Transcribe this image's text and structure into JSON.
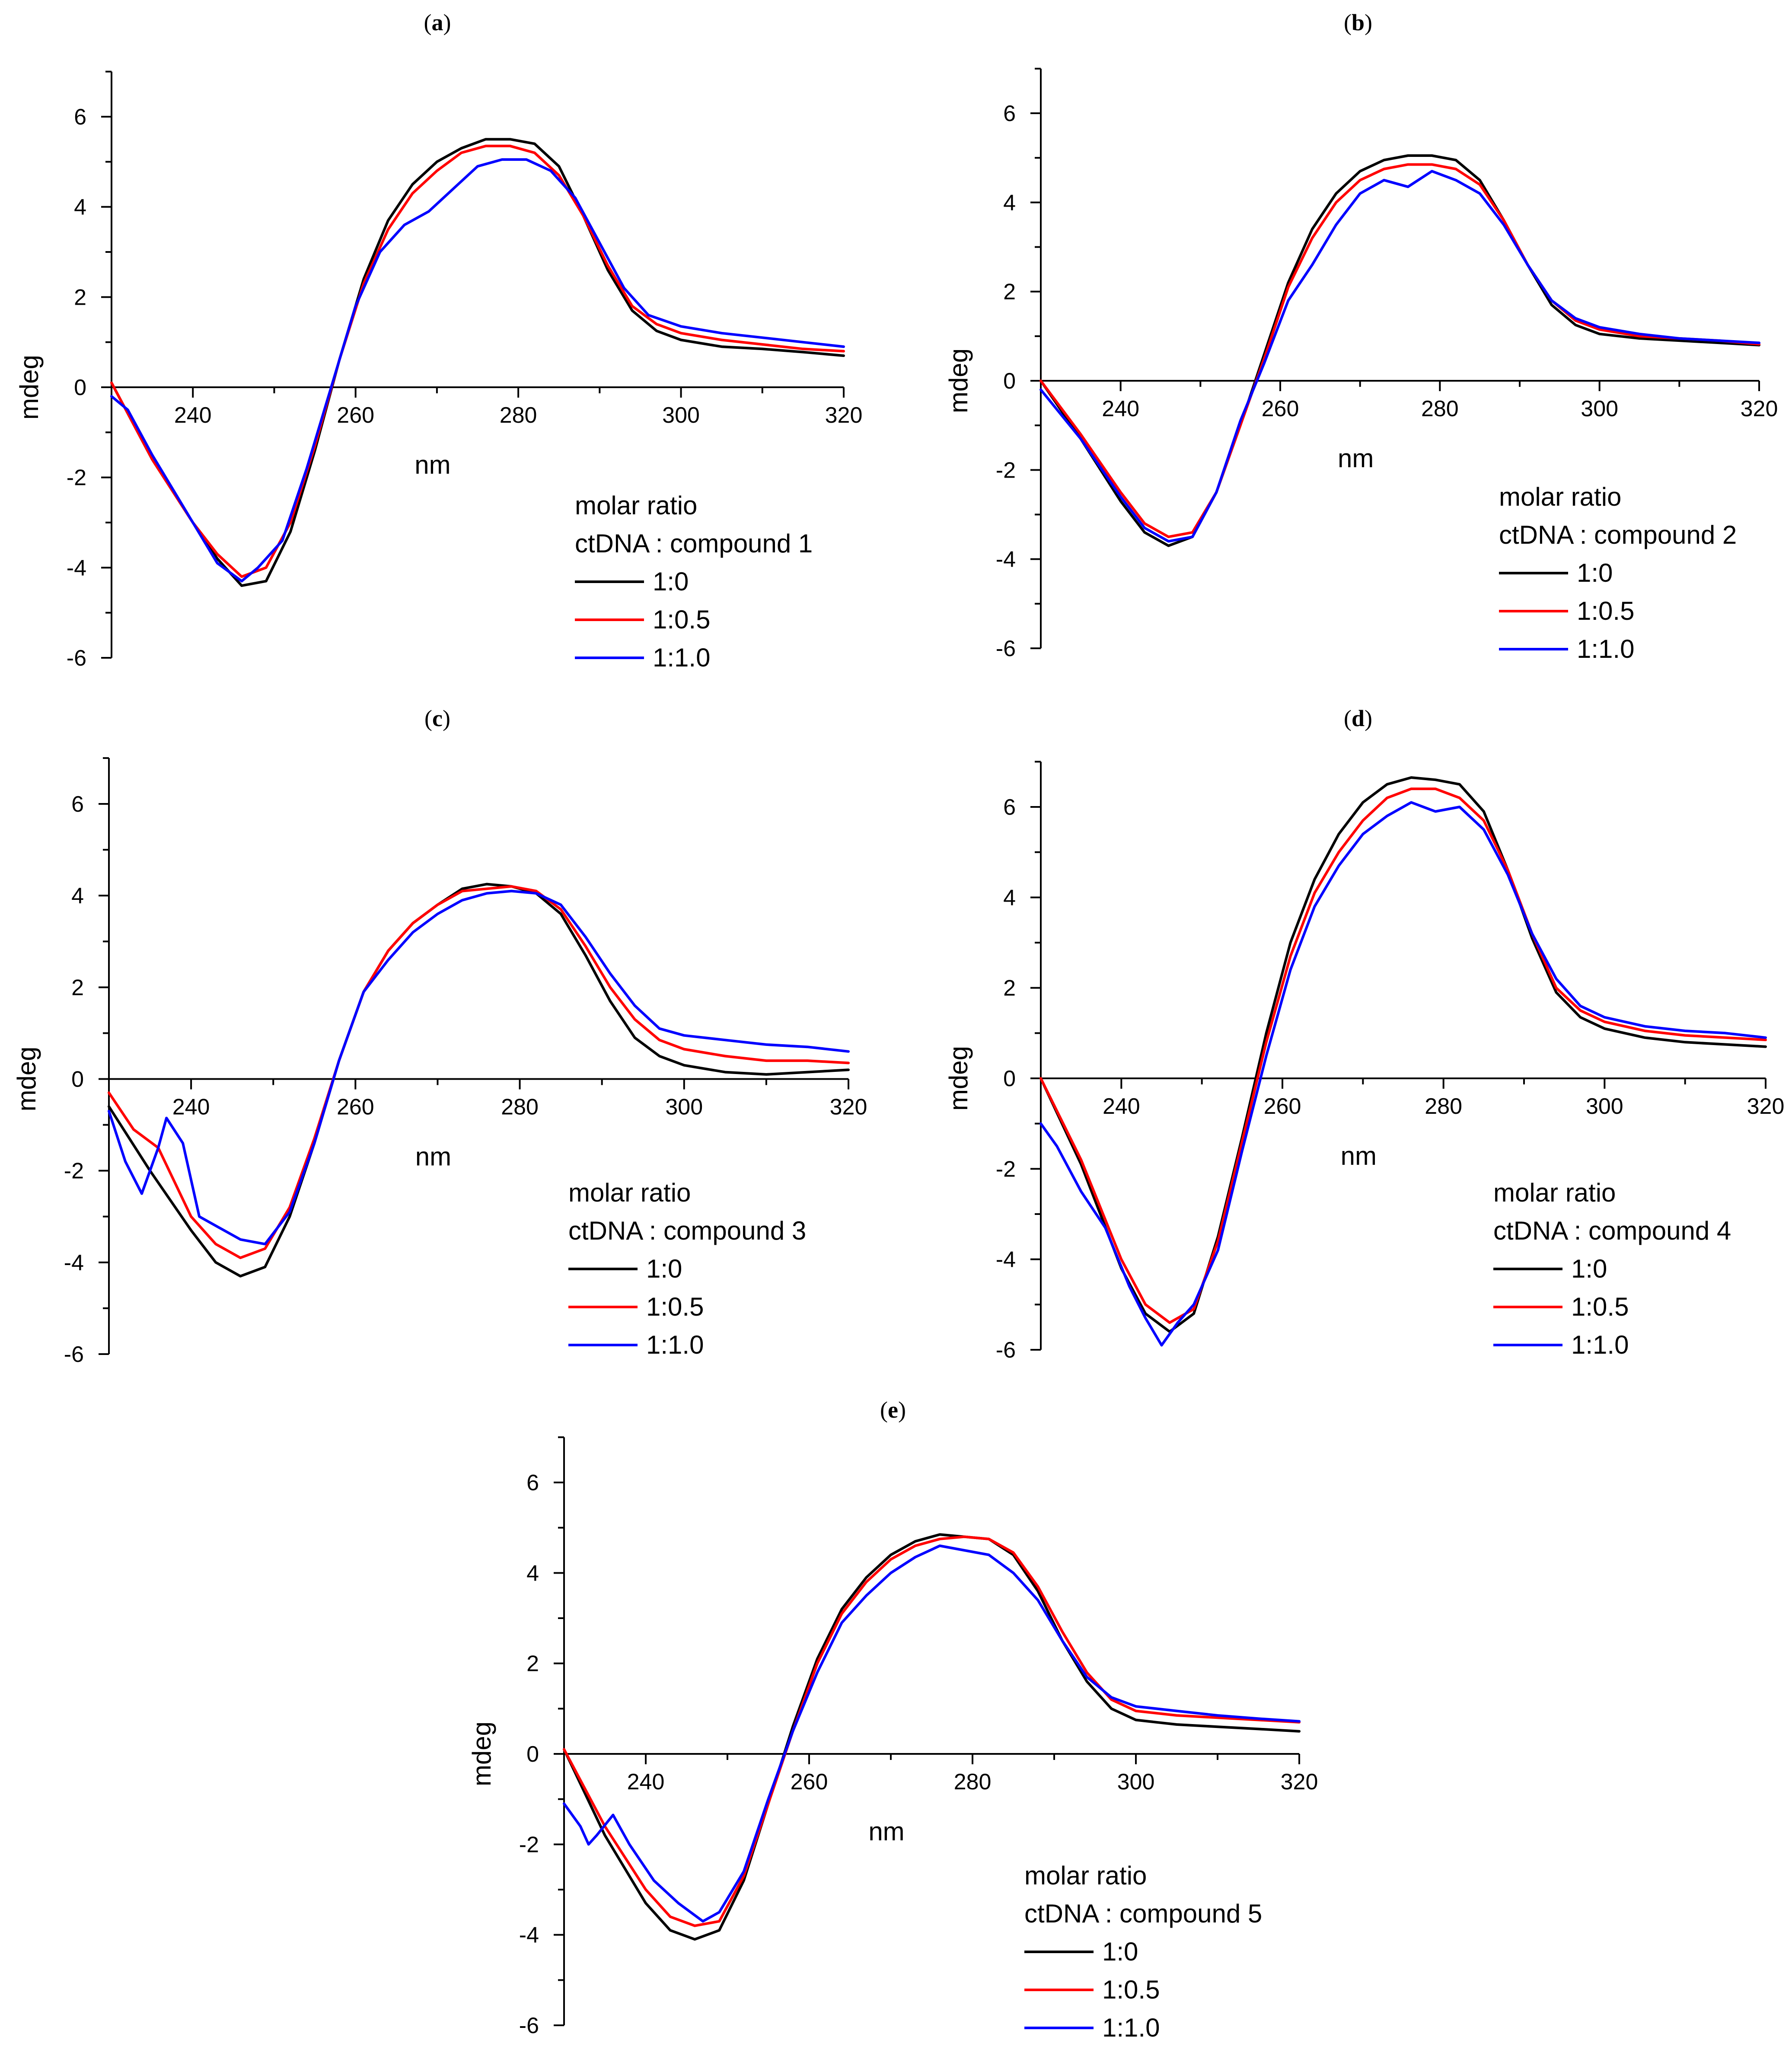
{
  "figure": {
    "panels": [
      "(a)",
      "(b)",
      "(c)",
      "(d)",
      "(e)"
    ]
  },
  "colors": {
    "ratio_0": "#000000",
    "ratio_05": "#ff0000",
    "ratio_10": "#0000ff"
  },
  "chart_data": [
    {
      "id": "a",
      "label": "a",
      "type": "line",
      "xlabel": "nm",
      "ylabel": "mdeg",
      "xlim": [
        230,
        320
      ],
      "ylim": [
        -6,
        7
      ],
      "xticks": [
        240,
        260,
        280,
        300,
        320
      ],
      "yticks": [
        -6,
        -4,
        -2,
        0,
        2,
        4,
        6
      ],
      "legend": {
        "title1": "molar ratio",
        "title2": "ctDNA : compound 1"
      },
      "series": [
        {
          "name": "1:0",
          "color": "#000000",
          "x": [
            230,
            235,
            240,
            243,
            246,
            249,
            252,
            255,
            258,
            261,
            264,
            267,
            270,
            273,
            276,
            279,
            282,
            285,
            288,
            291,
            294,
            297,
            300,
            305,
            310,
            315,
            320
          ],
          "y": [
            0.1,
            -1.6,
            -3.0,
            -3.8,
            -4.4,
            -4.3,
            -3.2,
            -1.4,
            0.6,
            2.4,
            3.7,
            4.5,
            5.0,
            5.3,
            5.5,
            5.5,
            5.4,
            4.9,
            3.8,
            2.6,
            1.7,
            1.25,
            1.05,
            0.9,
            0.85,
            0.78,
            0.7
          ]
        },
        {
          "name": "1:0.5",
          "color": "#ff0000",
          "x": [
            230,
            235,
            240,
            243,
            246,
            249,
            252,
            255,
            258,
            261,
            264,
            267,
            270,
            273,
            276,
            279,
            282,
            285,
            288,
            291,
            294,
            297,
            300,
            305,
            310,
            315,
            320
          ],
          "y": [
            0.1,
            -1.6,
            -3.0,
            -3.7,
            -4.2,
            -4.0,
            -3.0,
            -1.3,
            0.6,
            2.3,
            3.5,
            4.3,
            4.8,
            5.2,
            5.35,
            5.35,
            5.2,
            4.7,
            3.8,
            2.7,
            1.8,
            1.4,
            1.2,
            1.05,
            0.95,
            0.85,
            0.8
          ]
        },
        {
          "name": "1:1.0",
          "color": "#0000ff",
          "x": [
            230,
            232,
            235,
            240,
            243,
            246,
            248,
            251,
            254,
            257,
            260,
            263,
            266,
            269,
            272,
            275,
            278,
            281,
            284,
            287,
            290,
            293,
            296,
            300,
            305,
            310,
            315,
            320
          ],
          "y": [
            -0.2,
            -0.5,
            -1.5,
            -3.0,
            -3.9,
            -4.3,
            -4.0,
            -3.4,
            -1.8,
            0.0,
            1.8,
            3.0,
            3.6,
            3.9,
            4.4,
            4.9,
            5.05,
            5.05,
            4.8,
            4.2,
            3.2,
            2.2,
            1.6,
            1.35,
            1.2,
            1.1,
            1.0,
            0.9
          ]
        }
      ]
    },
    {
      "id": "b",
      "label": "b",
      "type": "line",
      "xlabel": "nm",
      "ylabel": "mdeg",
      "xlim": [
        230,
        320
      ],
      "ylim": [
        -6,
        7
      ],
      "xticks": [
        240,
        260,
        280,
        300,
        320
      ],
      "yticks": [
        -6,
        -4,
        -2,
        0,
        2,
        4,
        6
      ],
      "legend": {
        "title1": "molar ratio",
        "title2": "ctDNA : compound 2"
      },
      "series": [
        {
          "name": "1:0",
          "color": "#000000",
          "x": [
            230,
            235,
            240,
            243,
            246,
            249,
            252,
            255,
            258,
            261,
            264,
            267,
            270,
            273,
            276,
            279,
            282,
            285,
            288,
            291,
            294,
            297,
            300,
            305,
            310,
            315,
            320
          ],
          "y": [
            0.0,
            -1.3,
            -2.7,
            -3.4,
            -3.7,
            -3.5,
            -2.5,
            -1.0,
            0.6,
            2.2,
            3.4,
            4.2,
            4.7,
            4.95,
            5.05,
            5.05,
            4.95,
            4.5,
            3.6,
            2.6,
            1.7,
            1.25,
            1.05,
            0.95,
            0.9,
            0.85,
            0.8
          ]
        },
        {
          "name": "1:0.5",
          "color": "#ff0000",
          "x": [
            230,
            235,
            240,
            243,
            246,
            249,
            252,
            255,
            258,
            261,
            264,
            267,
            270,
            273,
            276,
            279,
            282,
            285,
            288,
            291,
            294,
            297,
            300,
            305,
            310,
            315,
            320
          ],
          "y": [
            0.0,
            -1.2,
            -2.5,
            -3.2,
            -3.5,
            -3.4,
            -2.5,
            -1.0,
            0.5,
            2.1,
            3.2,
            4.0,
            4.5,
            4.75,
            4.85,
            4.85,
            4.75,
            4.4,
            3.6,
            2.6,
            1.8,
            1.35,
            1.15,
            1.0,
            0.95,
            0.9,
            0.82
          ]
        },
        {
          "name": "1:1.0",
          "color": "#0000ff",
          "x": [
            230,
            235,
            240,
            243,
            246,
            249,
            252,
            255,
            258,
            261,
            264,
            267,
            270,
            273,
            276,
            279,
            282,
            285,
            288,
            291,
            294,
            297,
            300,
            305,
            310,
            315,
            320
          ],
          "y": [
            -0.2,
            -1.3,
            -2.6,
            -3.3,
            -3.6,
            -3.5,
            -2.5,
            -0.9,
            0.4,
            1.8,
            2.6,
            3.5,
            4.2,
            4.5,
            4.35,
            4.7,
            4.5,
            4.2,
            3.5,
            2.6,
            1.8,
            1.4,
            1.2,
            1.05,
            0.95,
            0.9,
            0.85
          ]
        }
      ]
    },
    {
      "id": "c",
      "label": "c",
      "type": "line",
      "xlabel": "nm",
      "ylabel": "mdeg",
      "xlim": [
        230,
        320
      ],
      "ylim": [
        -6,
        7
      ],
      "xticks": [
        240,
        260,
        280,
        300,
        320
      ],
      "yticks": [
        -6,
        -4,
        -2,
        0,
        2,
        4,
        6
      ],
      "legend": {
        "title1": "molar ratio",
        "title2": "ctDNA : compound 3"
      },
      "series": [
        {
          "name": "1:0",
          "color": "#000000",
          "x": [
            230,
            235,
            240,
            243,
            246,
            249,
            252,
            255,
            258,
            261,
            264,
            267,
            270,
            273,
            276,
            279,
            282,
            285,
            288,
            291,
            294,
            297,
            300,
            305,
            310,
            315,
            320
          ],
          "y": [
            -0.6,
            -2.0,
            -3.3,
            -4.0,
            -4.3,
            -4.1,
            -3.0,
            -1.4,
            0.4,
            1.9,
            2.8,
            3.4,
            3.8,
            4.15,
            4.25,
            4.2,
            4.05,
            3.6,
            2.7,
            1.7,
            0.9,
            0.5,
            0.3,
            0.15,
            0.1,
            0.15,
            0.2
          ]
        },
        {
          "name": "1:0.5",
          "color": "#ff0000",
          "x": [
            230,
            233,
            236,
            240,
            243,
            246,
            249,
            252,
            255,
            258,
            261,
            264,
            267,
            270,
            273,
            276,
            279,
            282,
            285,
            288,
            291,
            294,
            297,
            300,
            305,
            310,
            315,
            320
          ],
          "y": [
            -0.3,
            -1.1,
            -1.5,
            -3.0,
            -3.6,
            -3.9,
            -3.7,
            -2.8,
            -1.3,
            0.4,
            1.9,
            2.8,
            3.4,
            3.8,
            4.1,
            4.15,
            4.2,
            4.1,
            3.7,
            2.9,
            2.0,
            1.3,
            0.85,
            0.65,
            0.5,
            0.4,
            0.4,
            0.35
          ]
        },
        {
          "name": "1:1.0",
          "color": "#0000ff",
          "x": [
            230,
            232,
            234,
            236,
            237,
            239,
            241,
            243,
            246,
            249,
            252,
            255,
            258,
            261,
            264,
            267,
            270,
            273,
            276,
            279,
            282,
            285,
            288,
            291,
            294,
            297,
            300,
            305,
            310,
            315,
            320
          ],
          "y": [
            -0.7,
            -1.8,
            -2.5,
            -1.5,
            -0.85,
            -1.4,
            -3.0,
            -3.2,
            -3.5,
            -3.6,
            -2.9,
            -1.4,
            0.4,
            1.9,
            2.6,
            3.2,
            3.6,
            3.9,
            4.05,
            4.1,
            4.05,
            3.8,
            3.1,
            2.3,
            1.6,
            1.1,
            0.95,
            0.85,
            0.75,
            0.7,
            0.6
          ]
        }
      ]
    },
    {
      "id": "d",
      "label": "d",
      "type": "line",
      "xlabel": "nm",
      "ylabel": "mdeg",
      "xlim": [
        230,
        320
      ],
      "ylim": [
        -6,
        7
      ],
      "xticks": [
        240,
        260,
        280,
        300,
        320
      ],
      "yticks": [
        -6,
        -4,
        -2,
        0,
        2,
        4,
        6
      ],
      "legend": {
        "title1": "molar ratio",
        "title2": "ctDNA : compound 4"
      },
      "series": [
        {
          "name": "1:0",
          "color": "#000000",
          "x": [
            230,
            235,
            240,
            243,
            246,
            249,
            252,
            255,
            258,
            261,
            264,
            267,
            270,
            273,
            276,
            279,
            282,
            285,
            288,
            291,
            294,
            297,
            300,
            305,
            310,
            315,
            320
          ],
          "y": [
            0.0,
            -1.9,
            -4.2,
            -5.2,
            -5.6,
            -5.2,
            -3.5,
            -1.3,
            1.0,
            3.0,
            4.4,
            5.4,
            6.1,
            6.5,
            6.65,
            6.6,
            6.5,
            5.9,
            4.6,
            3.1,
            1.9,
            1.35,
            1.1,
            0.9,
            0.8,
            0.75,
            0.7
          ]
        },
        {
          "name": "1:0.5",
          "color": "#ff0000",
          "x": [
            230,
            235,
            240,
            243,
            246,
            249,
            252,
            255,
            258,
            261,
            264,
            267,
            270,
            273,
            276,
            279,
            282,
            285,
            288,
            291,
            294,
            297,
            300,
            305,
            310,
            315,
            320
          ],
          "y": [
            0.0,
            -1.8,
            -4.0,
            -5.0,
            -5.4,
            -5.1,
            -3.6,
            -1.4,
            0.8,
            2.7,
            4.1,
            5.0,
            5.7,
            6.2,
            6.4,
            6.4,
            6.2,
            5.7,
            4.6,
            3.2,
            2.0,
            1.5,
            1.25,
            1.05,
            0.95,
            0.9,
            0.85
          ]
        },
        {
          "name": "1:1.0",
          "color": "#0000ff",
          "x": [
            230,
            232,
            235,
            238,
            241,
            243,
            245,
            247,
            249,
            252,
            255,
            258,
            261,
            264,
            267,
            270,
            273,
            276,
            279,
            282,
            285,
            288,
            291,
            294,
            297,
            300,
            305,
            310,
            315,
            320
          ],
          "y": [
            -1.0,
            -1.5,
            -2.5,
            -3.3,
            -4.6,
            -5.3,
            -5.9,
            -5.4,
            -5.0,
            -3.8,
            -1.6,
            0.5,
            2.4,
            3.8,
            4.7,
            5.4,
            5.8,
            6.1,
            5.9,
            6.0,
            5.5,
            4.5,
            3.2,
            2.2,
            1.6,
            1.35,
            1.15,
            1.05,
            1.0,
            0.9
          ]
        }
      ]
    },
    {
      "id": "e",
      "label": "e",
      "type": "line",
      "xlabel": "nm",
      "ylabel": "mdeg",
      "xlim": [
        230,
        320
      ],
      "ylim": [
        -6,
        7
      ],
      "xticks": [
        240,
        260,
        280,
        300,
        320
      ],
      "yticks": [
        -6,
        -4,
        -2,
        0,
        2,
        4,
        6
      ],
      "legend": {
        "title1": "molar ratio",
        "title2": "ctDNA : compound 5"
      },
      "series": [
        {
          "name": "1:0",
          "color": "#000000",
          "x": [
            230,
            235,
            240,
            243,
            246,
            249,
            252,
            255,
            258,
            261,
            264,
            267,
            270,
            273,
            276,
            279,
            282,
            285,
            288,
            291,
            294,
            297,
            300,
            305,
            310,
            315,
            320
          ],
          "y": [
            0.1,
            -1.8,
            -3.3,
            -3.9,
            -4.1,
            -3.9,
            -2.8,
            -1.1,
            0.6,
            2.1,
            3.2,
            3.9,
            4.4,
            4.7,
            4.85,
            4.8,
            4.75,
            4.4,
            3.6,
            2.5,
            1.6,
            1.0,
            0.75,
            0.65,
            0.6,
            0.55,
            0.5
          ]
        },
        {
          "name": "1:0.5",
          "color": "#ff0000",
          "x": [
            230,
            235,
            240,
            243,
            246,
            249,
            252,
            255,
            258,
            261,
            264,
            267,
            270,
            273,
            276,
            279,
            282,
            285,
            288,
            291,
            294,
            297,
            300,
            305,
            310,
            315,
            320
          ],
          "y": [
            0.1,
            -1.6,
            -3.0,
            -3.6,
            -3.8,
            -3.7,
            -2.7,
            -1.1,
            0.5,
            2.0,
            3.1,
            3.8,
            4.3,
            4.6,
            4.75,
            4.8,
            4.75,
            4.45,
            3.7,
            2.7,
            1.8,
            1.2,
            0.95,
            0.85,
            0.8,
            0.75,
            0.7
          ]
        },
        {
          "name": "1:1.0",
          "color": "#0000ff",
          "x": [
            230,
            232,
            233,
            234,
            236,
            238,
            241,
            244,
            247,
            249,
            252,
            255,
            258,
            261,
            264,
            267,
            270,
            273,
            276,
            279,
            282,
            285,
            288,
            291,
            294,
            297,
            300,
            305,
            310,
            315,
            320
          ],
          "y": [
            -1.1,
            -1.6,
            -2.0,
            -1.8,
            -1.35,
            -2.0,
            -2.8,
            -3.3,
            -3.7,
            -3.5,
            -2.6,
            -1.0,
            0.5,
            1.8,
            2.9,
            3.5,
            4.0,
            4.35,
            4.6,
            4.5,
            4.4,
            4.0,
            3.4,
            2.5,
            1.7,
            1.25,
            1.05,
            0.95,
            0.85,
            0.78,
            0.72
          ]
        }
      ]
    }
  ]
}
